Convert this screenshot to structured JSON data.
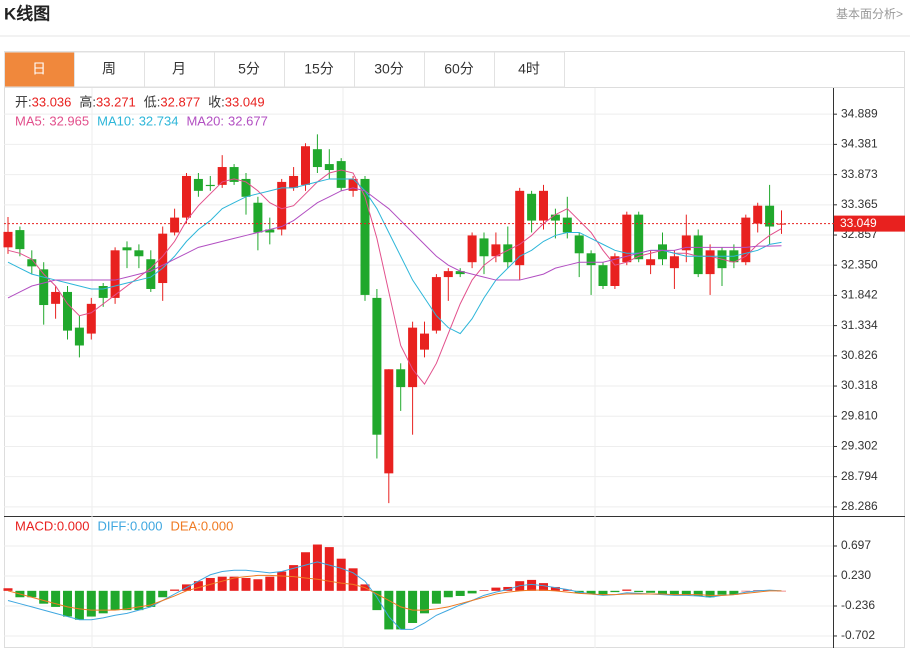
{
  "header": {
    "title": "K线图",
    "link": "基本面分析>"
  },
  "tabs": [
    "日",
    "周",
    "月",
    "5分",
    "15分",
    "30分",
    "60分",
    "4时"
  ],
  "chart_data": [
    {
      "type": "candlestick",
      "info": [
        {
          "label": "开:",
          "value": 33.036
        },
        {
          "label": "高:",
          "value": 33.271
        },
        {
          "label": "低:",
          "value": 32.877
        },
        {
          "label": "收:",
          "value": 33.049
        }
      ],
      "up_color": "#e8211f",
      "down_color": "#20a82c",
      "open": [
        32.65,
        32.94,
        32.45,
        32.28,
        31.7,
        31.9,
        31.3,
        31.2,
        32.0,
        31.8,
        32.65,
        32.6,
        32.45,
        32.05,
        32.9,
        33.15,
        33.8,
        33.7,
        33.7,
        34.0,
        33.8,
        33.4,
        32.95,
        32.95,
        33.65,
        33.7,
        34.3,
        34.05,
        34.1,
        33.6,
        33.8,
        31.8,
        28.85,
        30.6,
        30.3,
        30.93,
        31.25,
        32.15,
        32.25,
        32.4,
        32.8,
        32.5,
        32.7,
        32.35,
        33.55,
        33.1,
        33.2,
        33.15,
        32.85,
        32.55,
        32.35,
        32.0,
        32.4,
        33.2,
        32.35,
        32.7,
        32.3,
        32.6,
        32.85,
        32.2,
        32.6,
        32.6,
        32.4,
        33.05,
        33.35,
        33.036
      ],
      "high": [
        33.16,
        33.0,
        32.6,
        32.4,
        32.0,
        32.0,
        31.5,
        31.8,
        32.05,
        32.65,
        32.75,
        32.7,
        32.6,
        33.0,
        33.3,
        33.9,
        33.9,
        33.85,
        34.2,
        34.05,
        33.9,
        33.5,
        33.15,
        33.8,
        34.0,
        34.4,
        34.55,
        34.3,
        34.15,
        33.85,
        33.85,
        31.95,
        30.6,
        30.7,
        31.4,
        31.4,
        32.2,
        32.3,
        32.3,
        32.9,
        32.9,
        32.9,
        33.0,
        33.65,
        33.6,
        33.7,
        33.3,
        33.5,
        32.9,
        32.6,
        32.4,
        32.55,
        33.25,
        33.25,
        32.6,
        32.9,
        32.6,
        33.2,
        32.95,
        32.7,
        32.65,
        32.7,
        33.2,
        33.4,
        33.7,
        33.271
      ],
      "low": [
        32.54,
        32.5,
        32.2,
        31.35,
        31.45,
        31.1,
        30.8,
        31.1,
        31.65,
        31.7,
        32.3,
        32.3,
        31.9,
        31.75,
        32.85,
        33.05,
        33.5,
        33.6,
        33.65,
        33.7,
        33.2,
        32.6,
        32.7,
        32.85,
        33.6,
        33.6,
        33.9,
        33.8,
        33.6,
        33.5,
        31.75,
        29.1,
        28.35,
        29.9,
        29.5,
        30.8,
        31.2,
        31.75,
        32.15,
        32.3,
        32.2,
        32.4,
        32.3,
        32.1,
        32.9,
        32.95,
        32.8,
        32.8,
        32.15,
        31.85,
        31.95,
        31.95,
        32.35,
        32.4,
        32.2,
        32.35,
        31.95,
        32.4,
        32.15,
        31.85,
        32.0,
        32.3,
        32.35,
        32.9,
        32.7,
        32.877
      ],
      "close": [
        32.91,
        32.62,
        32.33,
        31.68,
        31.9,
        31.25,
        31.0,
        31.7,
        31.8,
        32.6,
        32.6,
        32.5,
        31.95,
        32.88,
        33.15,
        33.85,
        33.6,
        33.68,
        34.0,
        33.75,
        33.5,
        32.9,
        32.9,
        33.75,
        33.85,
        34.35,
        34.0,
        33.95,
        33.65,
        33.8,
        31.85,
        29.5,
        30.6,
        30.3,
        31.3,
        31.2,
        32.15,
        32.25,
        32.2,
        32.85,
        32.5,
        32.7,
        32.4,
        33.6,
        33.1,
        33.6,
        33.1,
        32.9,
        32.55,
        32.35,
        32.0,
        32.5,
        33.2,
        32.45,
        32.45,
        32.45,
        32.5,
        32.85,
        32.2,
        32.6,
        32.3,
        32.4,
        33.15,
        33.35,
        33.0,
        33.049
      ],
      "series": [
        {
          "name": "MA5:",
          "color": "#e2508c",
          "last": 32.965,
          "values": [
            32.6,
            32.55,
            32.45,
            32.2,
            32.0,
            31.7,
            31.5,
            31.55,
            31.7,
            31.85,
            32.0,
            32.15,
            32.3,
            32.5,
            32.75,
            33.1,
            33.35,
            33.55,
            33.75,
            33.8,
            33.75,
            33.6,
            33.4,
            33.3,
            33.35,
            33.55,
            33.75,
            33.9,
            33.95,
            33.9,
            33.5,
            32.8,
            31.9,
            31.0,
            30.6,
            30.35,
            30.7,
            31.2,
            31.7,
            32.1,
            32.35,
            32.5,
            32.6,
            32.7,
            32.85,
            33.05,
            33.2,
            33.3,
            33.1,
            32.9,
            32.6,
            32.35,
            32.4,
            32.5,
            32.55,
            32.6,
            32.55,
            32.55,
            32.5,
            32.5,
            32.45,
            32.4,
            32.5,
            32.7,
            32.85,
            32.965
          ]
        },
        {
          "name": "MA10:",
          "color": "#2db6d9",
          "last": 32.734,
          "values": [
            32.4,
            32.3,
            32.2,
            32.15,
            32.1,
            32.05,
            32.0,
            31.95,
            31.95,
            32.0,
            32.05,
            32.1,
            32.15,
            32.3,
            32.5,
            32.75,
            32.95,
            33.1,
            33.3,
            33.4,
            33.5,
            33.55,
            33.6,
            33.65,
            33.65,
            33.7,
            33.75,
            33.8,
            33.8,
            33.8,
            33.6,
            33.3,
            32.9,
            32.5,
            32.1,
            31.8,
            31.5,
            31.3,
            31.2,
            31.45,
            31.8,
            32.1,
            32.3,
            32.5,
            32.6,
            32.75,
            32.85,
            32.9,
            32.9,
            32.8,
            32.7,
            32.6,
            32.55,
            32.55,
            32.6,
            32.6,
            32.55,
            32.5,
            32.5,
            32.5,
            32.5,
            32.5,
            32.55,
            32.6,
            32.7,
            32.734
          ]
        },
        {
          "name": "MA20:",
          "color": "#b24fc2",
          "last": 32.677,
          "values": [
            31.8,
            31.9,
            32.0,
            32.05,
            32.1,
            32.1,
            32.1,
            32.1,
            32.1,
            32.1,
            32.15,
            32.2,
            32.25,
            32.35,
            32.45,
            32.55,
            32.65,
            32.7,
            32.75,
            32.8,
            32.85,
            32.9,
            32.95,
            33.0,
            33.1,
            33.25,
            33.4,
            33.5,
            33.6,
            33.65,
            33.6,
            33.45,
            33.3,
            33.1,
            32.9,
            32.7,
            32.5,
            32.35,
            32.25,
            32.2,
            32.15,
            32.1,
            32.1,
            32.1,
            32.15,
            32.2,
            32.3,
            32.35,
            32.4,
            32.4,
            32.4,
            32.45,
            32.5,
            32.55,
            32.6,
            32.6,
            32.6,
            32.65,
            32.65,
            32.65,
            32.65,
            32.65,
            32.65,
            32.67,
            32.67,
            32.677
          ]
        }
      ],
      "ylim": [
        28.133,
        35.329
      ],
      "yticks": [
        34.889,
        34.381,
        33.873,
        33.365,
        32.857,
        {
          "value": 32.35,
          "label": "32.350"
        },
        31.842,
        31.334,
        30.826,
        30.318,
        {
          "value": 29.81,
          "label": "29.810"
        },
        29.302,
        28.794,
        28.286
      ],
      "grid": true
    },
    {
      "type": "macd",
      "histogram": {
        "name": "MACD:",
        "color_up": "#e8211f",
        "color_down": "#20a82c",
        "last": 0,
        "last_label": "0.000",
        "values": [
          0.04,
          -0.1,
          -0.1,
          -0.2,
          -0.25,
          -0.4,
          -0.45,
          -0.4,
          -0.35,
          -0.3,
          -0.3,
          -0.3,
          -0.25,
          -0.1,
          0.02,
          0.1,
          0.15,
          0.2,
          0.22,
          0.22,
          0.2,
          0.18,
          0.22,
          0.3,
          0.4,
          0.6,
          0.72,
          0.68,
          0.5,
          0.35,
          0.1,
          -0.3,
          -0.6,
          -0.6,
          -0.5,
          -0.35,
          -0.2,
          -0.1,
          -0.08,
          -0.04,
          0.01,
          0.05,
          0.06,
          0.15,
          0.17,
          0.12,
          0.06,
          0.02,
          -0.04,
          -0.05,
          -0.06,
          -0.02,
          0.02,
          -0.02,
          -0.03,
          -0.05,
          -0.06,
          -0.06,
          -0.08,
          -0.1,
          -0.06,
          -0.06,
          0,
          0.01,
          0.01,
          0
        ]
      },
      "series": [
        {
          "name": "DIFF:",
          "color": "#3fa7e0",
          "last": 0,
          "last_label": "0.000",
          "values": [
            -0.15,
            -0.2,
            -0.25,
            -0.3,
            -0.35,
            -0.4,
            -0.45,
            -0.45,
            -0.42,
            -0.38,
            -0.35,
            -0.3,
            -0.25,
            -0.15,
            -0.05,
            0.05,
            0.15,
            0.25,
            0.3,
            0.32,
            0.32,
            0.3,
            0.28,
            0.3,
            0.35,
            0.4,
            0.45,
            0.4,
            0.35,
            0.28,
            0.15,
            -0.1,
            -0.4,
            -0.6,
            -0.6,
            -0.5,
            -0.38,
            -0.3,
            -0.22,
            -0.15,
            -0.07,
            -0.02,
            0.02,
            0.08,
            0.1,
            0.08,
            0.05,
            0.02,
            -0.02,
            -0.05,
            -0.07,
            -0.06,
            -0.03,
            -0.04,
            -0.05,
            -0.06,
            -0.07,
            -0.07,
            -0.08,
            -0.1,
            -0.07,
            -0.06,
            -0.02,
            0,
            0.01,
            0
          ]
        },
        {
          "name": "DEA:",
          "color": "#ef7a22",
          "last": 0,
          "last_label": "0.000",
          "values": [
            0,
            -0.05,
            -0.1,
            -0.15,
            -0.2,
            -0.25,
            -0.28,
            -0.3,
            -0.3,
            -0.3,
            -0.28,
            -0.25,
            -0.22,
            -0.15,
            -0.08,
            0,
            0.05,
            0.1,
            0.15,
            0.2,
            0.22,
            0.24,
            0.24,
            0.23,
            0.22,
            0.2,
            0.18,
            0.15,
            0.12,
            0.1,
            0.05,
            -0.05,
            -0.15,
            -0.25,
            -0.3,
            -0.3,
            -0.28,
            -0.25,
            -0.2,
            -0.15,
            -0.1,
            -0.05,
            -0.02,
            0,
            0.01,
            0.01,
            0,
            -0.02,
            -0.04,
            -0.05,
            -0.06,
            -0.06,
            -0.05,
            -0.05,
            -0.05,
            -0.05,
            -0.06,
            -0.06,
            -0.06,
            -0.07,
            -0.07,
            -0.06,
            -0.04,
            -0.02,
            0,
            0
          ]
        }
      ],
      "ylim": [
        -0.889,
        1.148
      ],
      "yticks": [
        0.697,
        {
          "value": 0.23,
          "label": "0.230"
        },
        -0.236,
        -0.702
      ]
    }
  ]
}
